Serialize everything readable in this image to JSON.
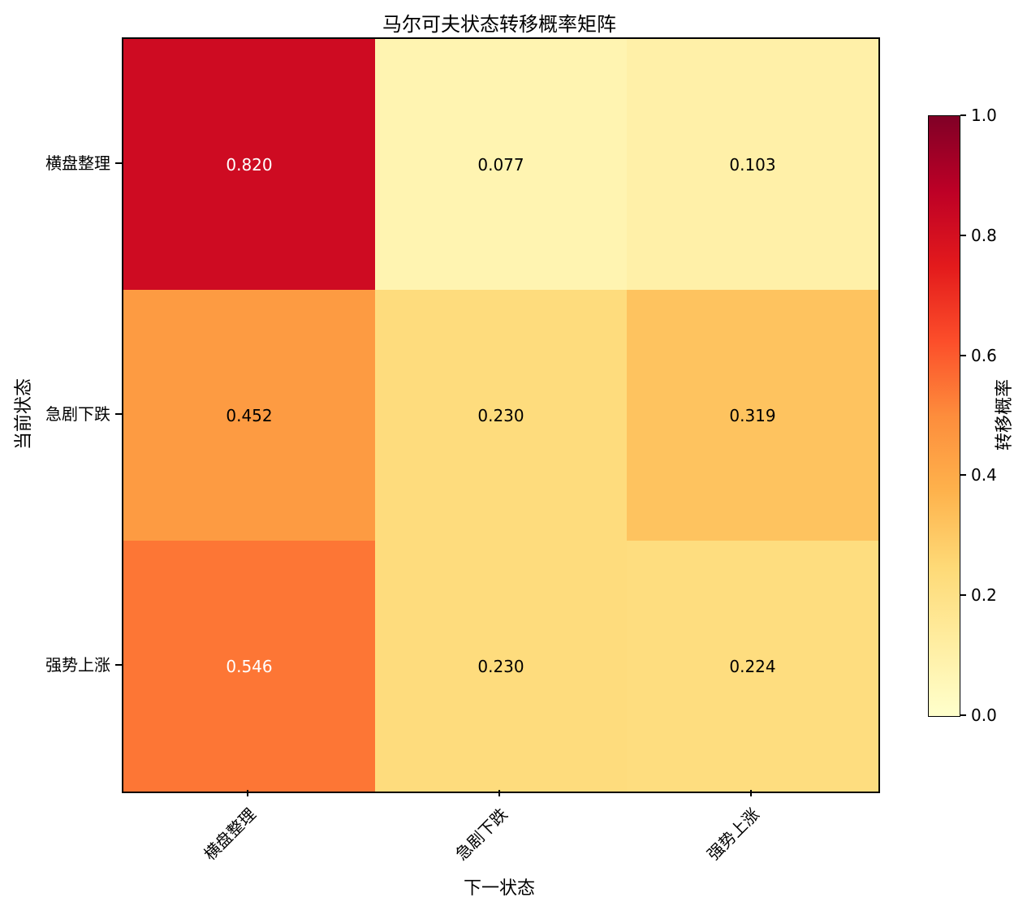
{
  "chart_data": {
    "type": "heatmap",
    "title": "马尔可夫状态转移概率矩阵",
    "xlabel": "下一状态",
    "ylabel": "当前状态",
    "colorbar_label": "转移概率",
    "row_labels": [
      "横盘整理",
      "急剧下跌",
      "强势上涨"
    ],
    "col_labels": [
      "横盘整理",
      "急剧下跌",
      "强势上涨"
    ],
    "values": [
      [
        0.82,
        0.077,
        0.103
      ],
      [
        0.452,
        0.23,
        0.319
      ],
      [
        0.546,
        0.23,
        0.224
      ]
    ],
    "cell_value_decimals": 3,
    "colorbar_ticks": [
      1.0,
      0.8,
      0.6,
      0.4,
      0.2,
      0.0
    ],
    "colorbar_tick_decimals": 1,
    "vmin": 0.0,
    "vmax": 1.0,
    "colormap": "YlOrRd",
    "colormap_stops": [
      "#ffffcc",
      "#ffeda0",
      "#fed976",
      "#feb24c",
      "#fd8d3c",
      "#fc4e2a",
      "#e31a1c",
      "#bd0026",
      "#800026"
    ],
    "high_value_text_color": "#ffffff",
    "low_value_text_color": "#000000",
    "text_color_threshold": 0.5,
    "axis_color": "#000000",
    "background_color": "#ffffff",
    "grid": false,
    "colorbar_position": "right"
  }
}
